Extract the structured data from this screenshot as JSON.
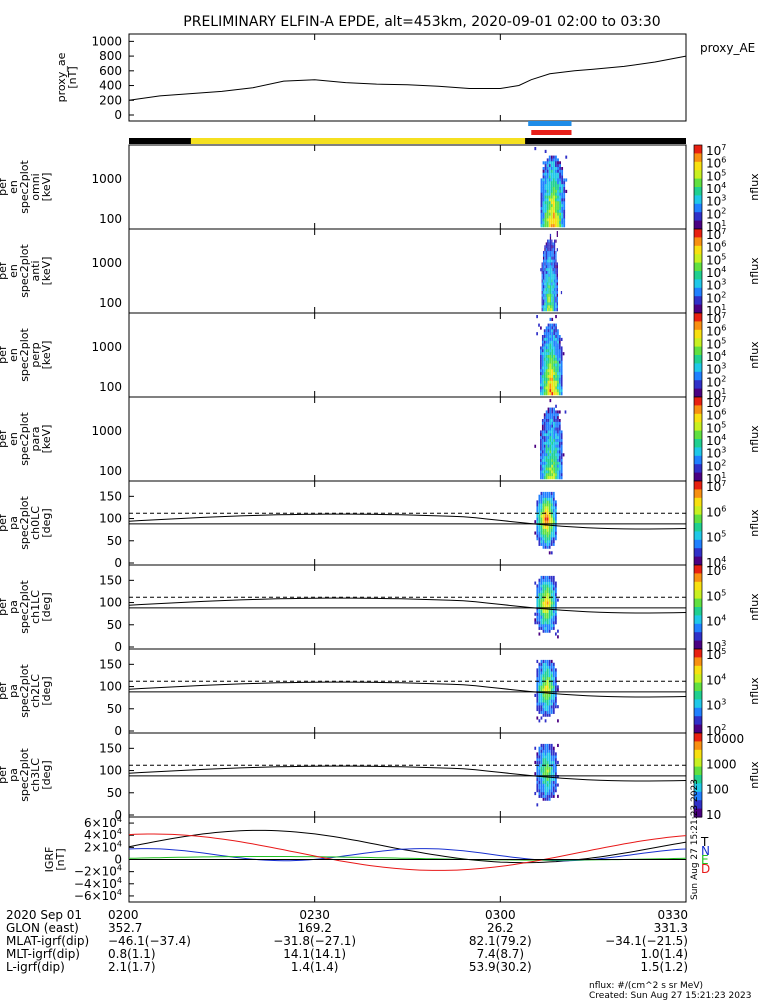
{
  "title": "PRELIMINARY ELFIN-A EPDE, alt=453km, 2020-09-01 02:00 to 03:30",
  "colors": {
    "zone_bar": "#000000",
    "sunlit_bar": "#f5e020",
    "flag_blue": "#1e8ce8",
    "flag_red": "#e8201a",
    "bx": "#000000",
    "by": "#1830d0",
    "bz": "#20c020",
    "bt": "#e81818"
  },
  "chart_data": [
    {
      "type": "line",
      "name": "proxy_ae",
      "ylabel": "proxy_ae\n[nT]",
      "legend": "proxy_AE",
      "ylim": [
        0,
        1100
      ],
      "yticks": [
        "1000",
        "800",
        "600",
        "400",
        "200",
        "0"
      ],
      "x_minutes": [
        0,
        5,
        10,
        15,
        20,
        25,
        30,
        35,
        40,
        45,
        50,
        55,
        60,
        63,
        65,
        68,
        72,
        75,
        80,
        85,
        90
      ],
      "values": [
        200,
        260,
        290,
        320,
        370,
        460,
        480,
        440,
        420,
        410,
        390,
        360,
        360,
        400,
        480,
        560,
        600,
        620,
        660,
        720,
        800
      ]
    },
    {
      "type": "heatmap",
      "ylabel": "ela\npef\nen\nspec2plot\nomni\n[keV]",
      "yticks": [
        "1000",
        "100"
      ],
      "colorbar_label": "nflux",
      "colorbar_ticks": [
        "10^7",
        "10^6",
        "10^5",
        "10^4",
        "10^3",
        "10^2",
        "10^1"
      ],
      "time_range_min": [
        65.5,
        71.5
      ],
      "peak": "low energy ~100-300 keV"
    },
    {
      "type": "heatmap",
      "ylabel": "ela\npef\nen\nspec2plot\nanti\n[keV]",
      "yticks": [
        "1000",
        "100"
      ],
      "colorbar_label": "nflux",
      "colorbar_ticks": [
        "10^7",
        "10^6",
        "10^5",
        "10^4",
        "10^3",
        "10^2",
        "10^1"
      ],
      "time_range_min": [
        66,
        70
      ]
    },
    {
      "type": "heatmap",
      "ylabel": "ela\npef\nen\nspec2plot\nperp\n[keV]",
      "yticks": [
        "1000",
        "100"
      ],
      "colorbar_label": "nflux",
      "colorbar_ticks": [
        "10^7",
        "10^6",
        "10^5",
        "10^4",
        "10^3",
        "10^2",
        "10^1"
      ],
      "time_range_min": [
        65.5,
        71
      ]
    },
    {
      "type": "heatmap",
      "ylabel": "ela\npef\nen\nspec2plot\npara\n[keV]",
      "yticks": [
        "1000",
        "100"
      ],
      "colorbar_label": "nflux",
      "colorbar_ticks": [
        "10^7",
        "10^6",
        "10^5",
        "10^4",
        "10^3",
        "10^2",
        "10^1"
      ],
      "time_range_min": [
        65.5,
        71
      ]
    },
    {
      "type": "heatmap",
      "ylabel": "ela\npef\npa\nspec2plot\nch0LC\n[deg]",
      "yticks": [
        "150",
        "100",
        "50",
        "0"
      ],
      "colorbar_label": "nflux",
      "colorbar_ticks": [
        "10^7",
        "10^6",
        "10^5",
        "10^4"
      ]
    },
    {
      "type": "heatmap",
      "ylabel": "ela\npef\npa\nspec2plot\nch1LC\n[deg]",
      "yticks": [
        "150",
        "100",
        "50",
        "0"
      ],
      "colorbar_label": "nflux",
      "colorbar_ticks": [
        "10^6",
        "10^5",
        "10^4",
        "10^3"
      ]
    },
    {
      "type": "heatmap",
      "ylabel": "ela\npef\npa\nspec2plot\nch2LC\n[deg]",
      "yticks": [
        "150",
        "100",
        "50",
        "0"
      ],
      "colorbar_label": "nflux",
      "colorbar_ticks": [
        "10^5",
        "10^4",
        "10^3",
        "10^2"
      ]
    },
    {
      "type": "heatmap",
      "ylabel": "ela\npef\npa\nspec2plot\nch3LC\n[deg]",
      "yticks": [
        "150",
        "100",
        "50",
        "0"
      ],
      "colorbar_label": "nflux",
      "colorbar_ticks": [
        "10000",
        "1000",
        "100",
        "10"
      ]
    },
    {
      "type": "line",
      "ylabel": "IGRF\n[nT]",
      "ylim": [
        -70000,
        70000
      ],
      "yticks": [
        "6×10^4",
        "4×10^4",
        "2×10^4",
        "0",
        "−2×10^4",
        "−4×10^4",
        "−6×10^4"
      ],
      "legend": [
        "T",
        "N",
        "E",
        "D"
      ]
    }
  ],
  "xaxis": {
    "ticks": [
      "0200",
      "0230",
      "0300",
      "0330"
    ]
  },
  "footer": {
    "rows": [
      {
        "label": "2020 Sep 01",
        "values": [
          "0200",
          "0230",
          "0300",
          "0330"
        ]
      },
      {
        "label": "GLON (east)",
        "values": [
          "352.7",
          "169.2",
          "26.2",
          "331.3"
        ]
      },
      {
        "label": "MLAT-igrf(dip)",
        "values": [
          "−46.1(−37.4)",
          "−31.8(−27.1)",
          "82.1(79.2)",
          "−34.1(−21.5)"
        ]
      },
      {
        "label": "MLT-igrf(dip)",
        "values": [
          "0.8(1.1)",
          "14.1(14.1)",
          "7.4(8.7)",
          "1.0(1.4)"
        ]
      },
      {
        "label": "L-igrf(dip)",
        "values": [
          "2.1(1.7)",
          "1.4(1.4)",
          "53.9(30.2)",
          "1.5(1.2)"
        ]
      }
    ],
    "units": "nflux: #/(cm^2 s sr MeV)",
    "created": "Created: Sun Aug 27 15:21:23 2023",
    "side_stamp": "Sun Aug 27 15:21:23 2023"
  }
}
